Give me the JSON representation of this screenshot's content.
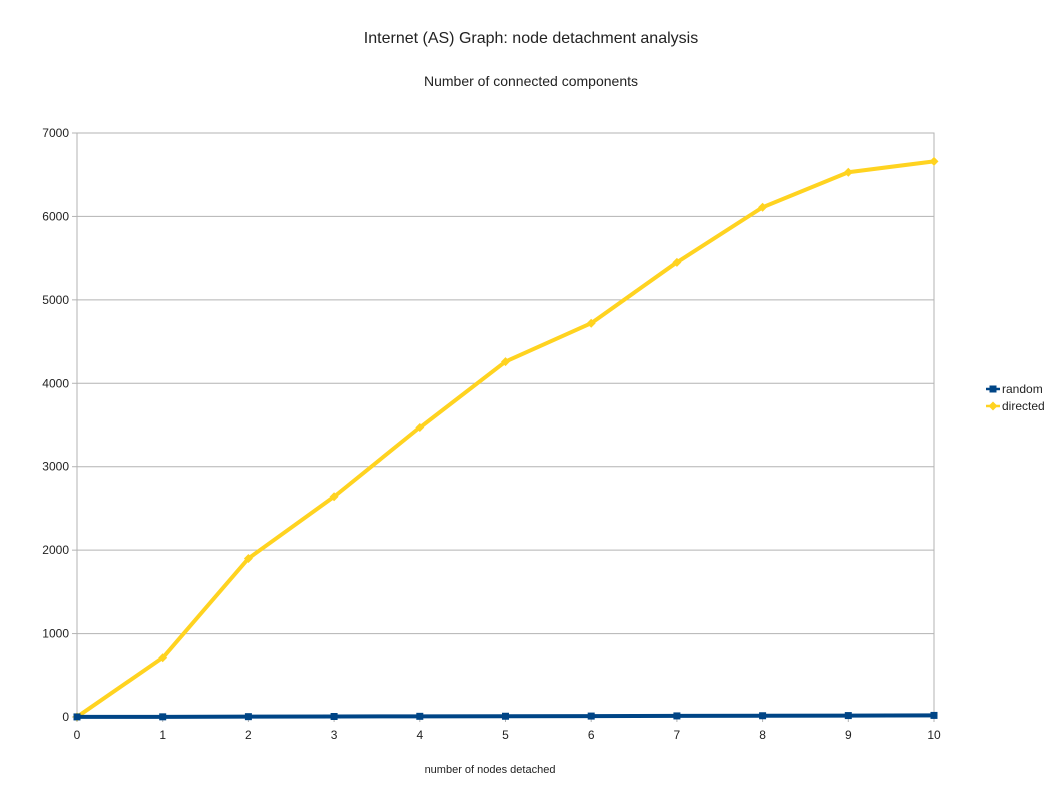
{
  "chart_data": {
    "type": "line",
    "title": "Internet (AS) Graph: node detachment analysis",
    "subtitle": "Number of connected components",
    "xlabel": "number of nodes detached",
    "ylabel": "",
    "x": [
      0,
      1,
      2,
      3,
      4,
      5,
      6,
      7,
      8,
      9,
      10
    ],
    "xlim": [
      0,
      10
    ],
    "ylim": [
      0,
      7000
    ],
    "yticks": [
      0,
      1000,
      2000,
      3000,
      4000,
      5000,
      6000,
      7000
    ],
    "grid": true,
    "legend_position": "right",
    "series": [
      {
        "name": "random",
        "color": "#004586",
        "marker": "square",
        "values": [
          1,
          2,
          4,
          6,
          8,
          9,
          11,
          13,
          15,
          17,
          19
        ]
      },
      {
        "name": "directed",
        "color": "#ffd320",
        "marker": "diamond",
        "values": [
          1,
          710,
          1900,
          2640,
          3470,
          4260,
          4720,
          5450,
          6110,
          6530,
          6660
        ]
      }
    ]
  }
}
